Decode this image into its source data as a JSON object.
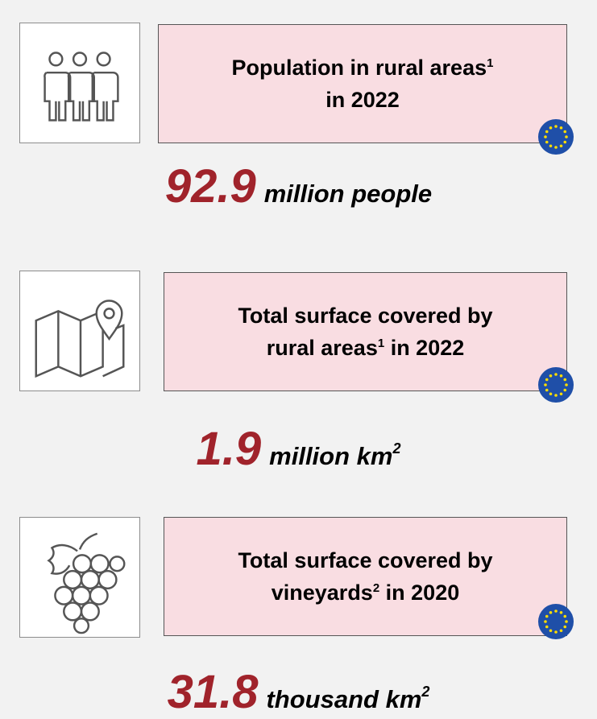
{
  "items": [
    {
      "title_line1": "Population in rural areas",
      "title_note": "1",
      "title_line2": "in 2022",
      "value": 92.9,
      "unit": "million people"
    },
    {
      "title_line1": "Total surface covered by",
      "title_line2a": "rural areas",
      "title_note": "1",
      "title_line2": " in 2022",
      "value": 1.9,
      "unit": "million km",
      "unit_power": "2"
    },
    {
      "title_line1": "Total surface covered by",
      "title_line2a": "vineyards",
      "title_note": "2",
      "title_line2": " in 2020",
      "value": 31.8,
      "unit": "thousand km",
      "unit_power": "2"
    }
  ]
}
